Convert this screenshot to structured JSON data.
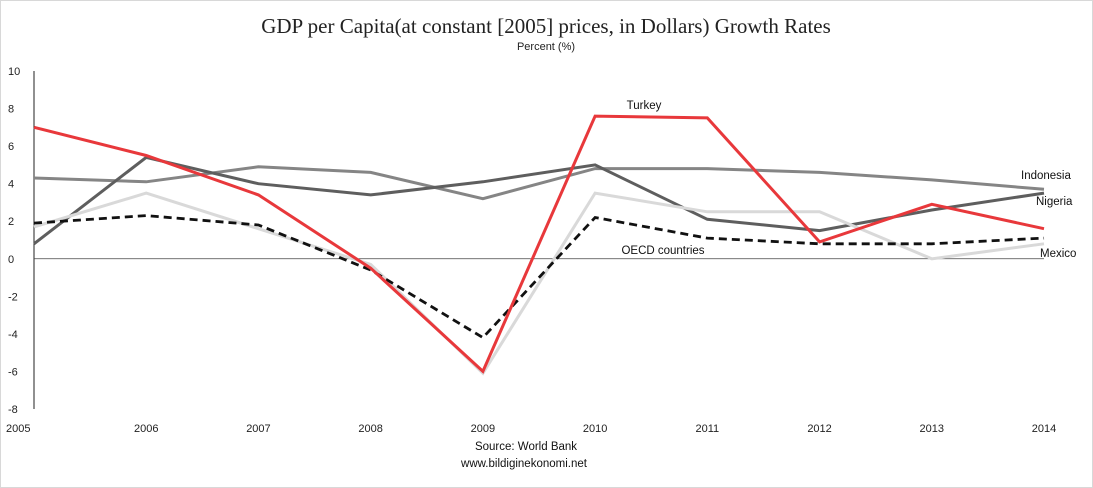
{
  "chart_data": {
    "type": "line",
    "title": "GDP per Capita(at constant [2005] prices, in Dollars) Growth Rates",
    "subtitle": "Percent (%)",
    "x": [
      "2005",
      "2006",
      "2007",
      "2008",
      "2009",
      "2010",
      "2011",
      "2012",
      "2013",
      "2014"
    ],
    "ylim": [
      -8,
      10
    ],
    "yticks": [
      "10",
      "8",
      "6",
      "4",
      "2",
      "0",
      "-2",
      "-4",
      "-6",
      "-8"
    ],
    "series": [
      {
        "name": "Indonesia",
        "color": "#858585",
        "dashed": false,
        "values": [
          4.3,
          4.1,
          4.9,
          4.6,
          3.2,
          4.8,
          4.8,
          4.6,
          4.2,
          3.7
        ]
      },
      {
        "name": "Nigeria",
        "color": "#5e5e5e",
        "dashed": false,
        "values": [
          0.8,
          5.4,
          4.0,
          3.4,
          4.1,
          5.0,
          2.1,
          1.5,
          2.6,
          3.5
        ]
      },
      {
        "name": "Mexico",
        "color": "#d9d9d9",
        "dashed": false,
        "values": [
          1.7,
          3.5,
          1.6,
          -0.3,
          -6.1,
          3.5,
          2.5,
          2.5,
          0.0,
          0.8
        ]
      },
      {
        "name": "OECD countries",
        "color": "#111111",
        "dashed": true,
        "values": [
          1.9,
          2.3,
          1.8,
          -0.6,
          -4.2,
          2.2,
          1.1,
          0.8,
          0.8,
          1.1
        ]
      },
      {
        "name": "Turkey",
        "color": "#e8383b",
        "dashed": false,
        "values": [
          7.0,
          5.5,
          3.4,
          -0.5,
          -6.0,
          7.6,
          7.5,
          0.9,
          2.9,
          1.6
        ]
      }
    ],
    "grid": false,
    "legend": "inline labels at line ends"
  },
  "source": {
    "line1": "Source: World Bank",
    "line2": "www.bildiginekonomi.net"
  }
}
